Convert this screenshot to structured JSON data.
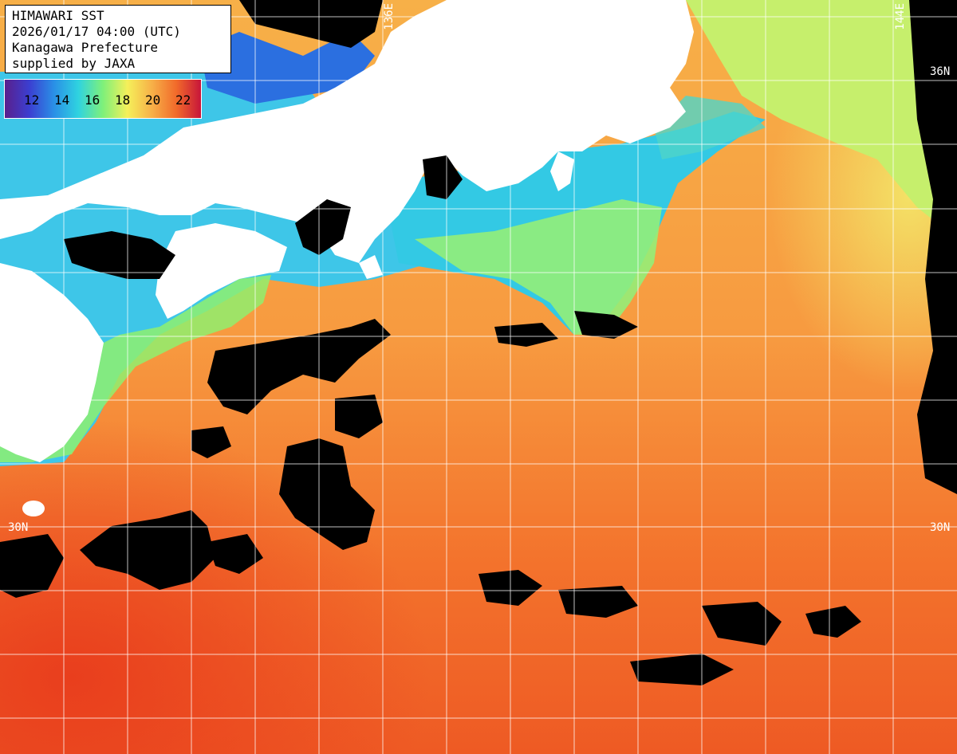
{
  "header": {
    "title": "HIMAWARI SST",
    "datetime": "2026/01/17 04:00 (UTC)",
    "region": "Kanagawa Prefecture",
    "credit": "supplied by JAXA"
  },
  "legend": {
    "labels": [
      "12",
      "14",
      "16",
      "18",
      "20",
      "22"
    ],
    "colors": [
      "#5a1f8c",
      "#3b3fd1",
      "#2a8fe6",
      "#2fd3e0",
      "#7ef07a",
      "#f5f05a",
      "#f7b048",
      "#f16a2a",
      "#c7143a"
    ]
  },
  "grid_labels": {
    "lon_136": "136E",
    "lon_144": "144E",
    "lat_36": "36N",
    "lat_30_left": "30N",
    "lat_30_right": "30N"
  },
  "colors": {
    "land": "#ffffff",
    "cloud": "#000000",
    "grid": "#ffffff"
  }
}
